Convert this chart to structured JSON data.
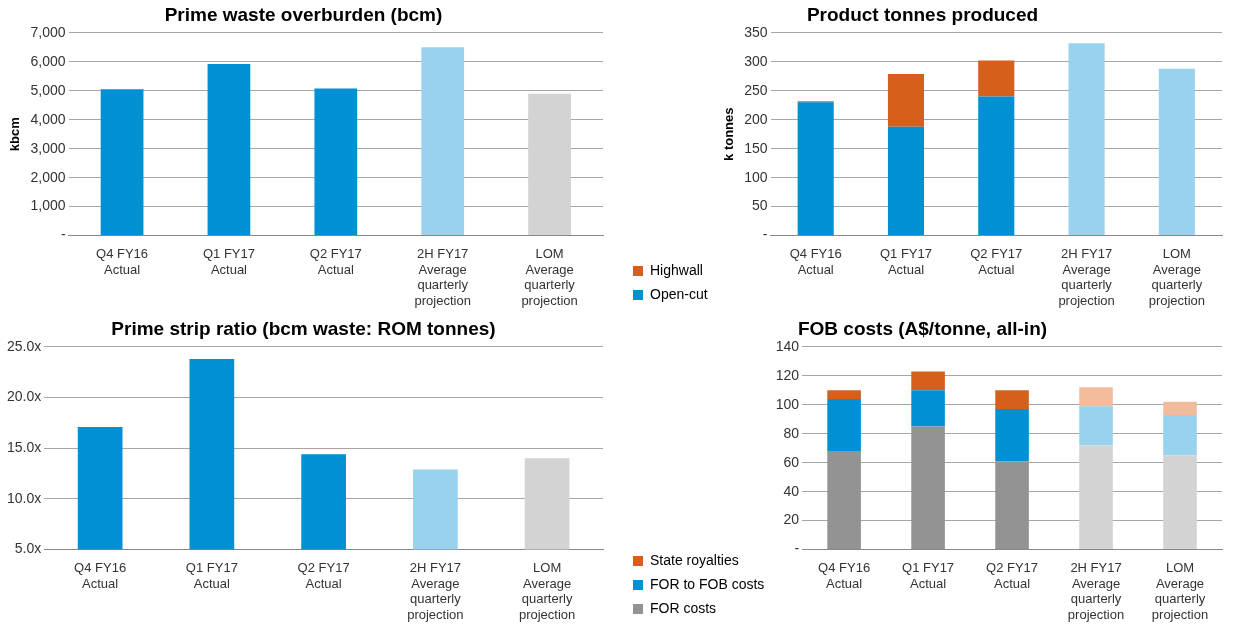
{
  "chart_data": [
    {
      "type": "bar",
      "title": "Prime waste overburden (bcm)",
      "ylabel": "kbcm",
      "categories": [
        "Q4 FY16\nActual",
        "Q1 FY17\nActual",
        "Q2 FY17\nActual",
        "2H FY17\nAverage\nquarterly\nprojection",
        "LOM\nAverage\nquarterly\nprojection"
      ],
      "values": [
        5050,
        5920,
        5080,
        6500,
        4900
      ],
      "colors": [
        "#0090d4",
        "#0090d4",
        "#0090d4",
        "#99d2ee",
        "#d3d3d3"
      ],
      "ylim": [
        0,
        7000
      ],
      "yticks": [
        {
          "value": 0,
          "label": "-"
        },
        {
          "value": 1000,
          "label": "1,000"
        },
        {
          "value": 2000,
          "label": "2,000"
        },
        {
          "value": 3000,
          "label": "3,000"
        },
        {
          "value": 4000,
          "label": "4,000"
        },
        {
          "value": 5000,
          "label": "5,000"
        },
        {
          "value": 6000,
          "label": "6,000"
        },
        {
          "value": 7000,
          "label": "7,000"
        }
      ],
      "grid": "y"
    },
    {
      "type": "bar",
      "title": "Product tonnes produced",
      "ylabel": "k tonnes",
      "stacked": true,
      "legend": "bottom left",
      "categories": [
        "Q4 FY16\nActual",
        "Q1 FY17\nActual",
        "Q2 FY17\nActual",
        "2H FY17\nAverage\nquarterly\nprojection",
        "LOM\nAverage\nquarterly\nprojection"
      ],
      "series": [
        {
          "name": "Open-cut",
          "color": "#0090d4",
          "colors": [
            "#0090d4",
            "#0090d4",
            "#0090d4",
            "#99d2ee",
            "#99d2ee"
          ],
          "values": [
            230,
            188,
            240,
            332,
            288
          ]
        },
        {
          "name": "Highwall",
          "color": "#d65f1c",
          "colors": [
            "#d65f1c",
            "#d65f1c",
            "#d65f1c",
            "#d65f1c",
            "#d65f1c"
          ],
          "values": [
            2,
            91,
            62,
            0,
            0
          ]
        }
      ],
      "ylim": [
        0,
        350
      ],
      "yticks": [
        {
          "value": 0,
          "label": "-"
        },
        50,
        100,
        150,
        200,
        250,
        300,
        350
      ],
      "grid": "y"
    },
    {
      "type": "bar",
      "title": "Prime strip ratio (bcm waste: ROM tonnes)",
      "categories": [
        "Q4 FY16\nActual",
        "Q1 FY17\nActual",
        "Q2 FY17\nActual",
        "2H FY17\nAverage\nquarterly\nprojection",
        "LOM\nAverage\nquarterly\nprojection"
      ],
      "values": [
        17.1,
        23.8,
        14.4,
        12.9,
        14.0
      ],
      "colors": [
        "#0090d4",
        "#0090d4",
        "#0090d4",
        "#99d2ee",
        "#d3d3d3"
      ],
      "ylim": [
        5,
        25
      ],
      "yticks": [
        {
          "value": 5,
          "label": "5.0x"
        },
        {
          "value": 10,
          "label": "10.0x"
        },
        {
          "value": 15,
          "label": "15.0x"
        },
        {
          "value": 20,
          "label": "20.0x"
        },
        {
          "value": 25,
          "label": "25.0x"
        }
      ],
      "grid": "y"
    },
    {
      "type": "bar",
      "title": "FOB costs (A$/tonne, all-in)",
      "stacked": true,
      "legend": "bottom left",
      "categories": [
        "Q4 FY16\nActual",
        "Q1 FY17\nActual",
        "Q2 FY17\nActual",
        "2H FY17\nAverage\nquarterly\nprojection",
        "LOM\nAverage\nquarterly\nprojection"
      ],
      "series": [
        {
          "name": "FOR costs",
          "color": "#939393",
          "colors": [
            "#939393",
            "#939393",
            "#939393",
            "#d3d3d3",
            "#d3d3d3"
          ],
          "values": [
            68,
            85,
            61,
            72,
            65
          ]
        },
        {
          "name": "FOR to FOB costs",
          "color": "#0090d4",
          "colors": [
            "#0090d4",
            "#0090d4",
            "#0090d4",
            "#99d2ee",
            "#99d2ee"
          ],
          "values": [
            36,
            25,
            36,
            27,
            28
          ]
        },
        {
          "name": "State royalties",
          "color": "#d65f1c",
          "colors": [
            "#d65f1c",
            "#d65f1c",
            "#d65f1c",
            "#f2bc9c",
            "#f2bc9c"
          ],
          "values": [
            6,
            13,
            13,
            13,
            9
          ]
        }
      ],
      "ylim": [
        0,
        140
      ],
      "yticks": [
        {
          "value": 0,
          "label": "-"
        },
        20,
        40,
        60,
        80,
        100,
        120,
        140
      ],
      "grid": "y"
    }
  ]
}
